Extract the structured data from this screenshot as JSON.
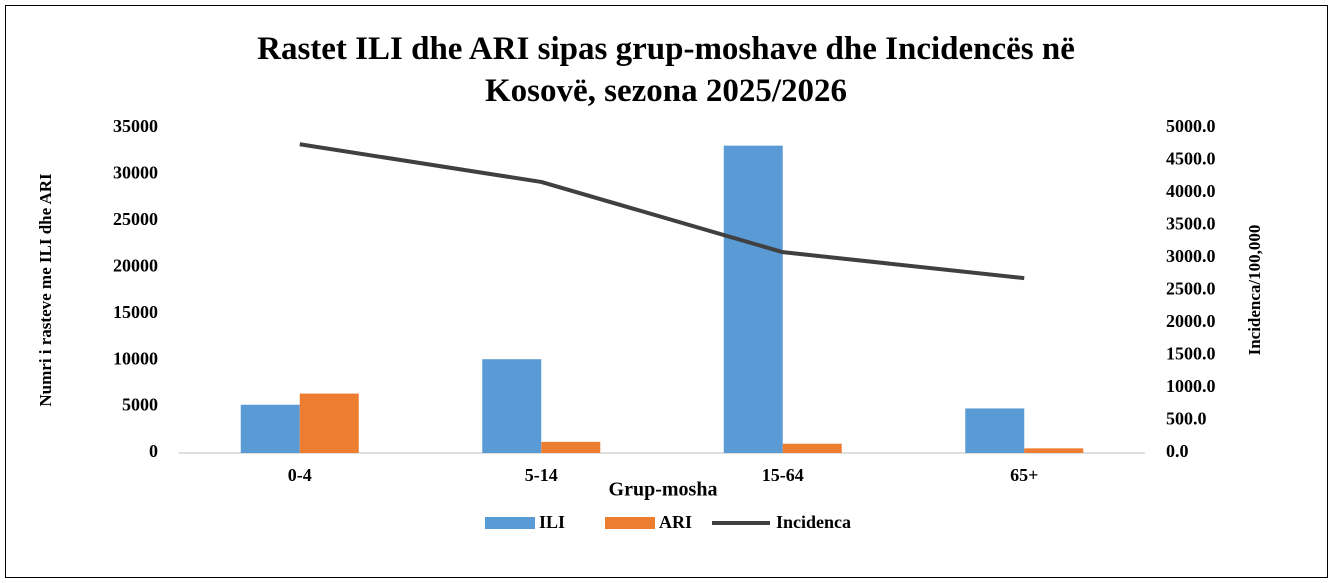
{
  "chart_data": {
    "type": "bar",
    "title": "Rastet ILI dhe ARI sipas grup-moshave dhe Incidencës në Kosovë, sezona 2025/2026",
    "x_label": "Grup-mosha",
    "y_label": "Numri i rasteve me ILI dhe ARI",
    "y2_label": "Incidenca/100,000",
    "categories": [
      "0-4",
      "5-14",
      "15-64",
      "65+"
    ],
    "series": [
      {
        "name": "ILI",
        "type": "bar",
        "color": "#5b9bd5",
        "values": [
          5200,
          10100,
          33100,
          4800
        ]
      },
      {
        "name": "ARI",
        "type": "bar",
        "color": "#ed7d31",
        "values": [
          6400,
          1200,
          1000,
          500
        ]
      },
      {
        "name": "Incidenca",
        "type": "line",
        "axis": "y2",
        "color": "#404040",
        "values": [
          4750,
          4170,
          3090,
          2690
        ]
      }
    ],
    "ylim": [
      0,
      35000
    ],
    "yticks": [
      0,
      5000,
      10000,
      15000,
      20000,
      25000,
      30000,
      35000
    ],
    "y2lim": [
      0,
      5000
    ],
    "y2ticks": [
      {
        "value": 0,
        "label": "0.0"
      },
      {
        "value": 500,
        "label": "500.0"
      },
      {
        "value": 1000,
        "label": "1000.0"
      },
      {
        "value": 1500,
        "label": "1500.0"
      },
      {
        "value": 2000,
        "label": "2000.0"
      },
      {
        "value": 2500,
        "label": "2500.0"
      },
      {
        "value": 3000,
        "label": "3000.0"
      },
      {
        "value": 3500,
        "label": "3500.0"
      },
      {
        "value": 4000,
        "label": "4000.0"
      },
      {
        "value": 4500,
        "label": "4500.0"
      },
      {
        "value": 5000,
        "label": "5000.0"
      }
    ],
    "grid": false,
    "legend": "bottom"
  }
}
